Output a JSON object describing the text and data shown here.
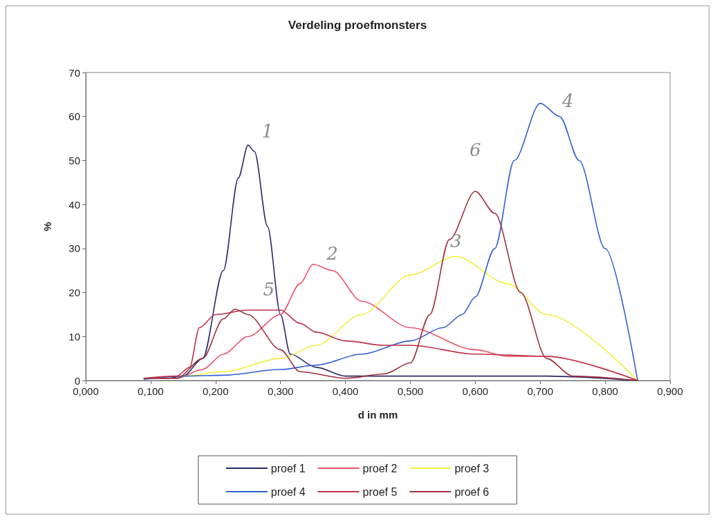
{
  "chart_data": {
    "type": "line",
    "title": "Verdeling proefmonsters",
    "xlabel": "d in mm",
    "ylabel": "%",
    "xlim": [
      0,
      0.9
    ],
    "xticks": [
      {
        "value": 0,
        "label": "0,000"
      },
      {
        "value": 0.1,
        "label": "0,100"
      },
      {
        "value": 0.2,
        "label": "0,200"
      },
      {
        "value": 0.3,
        "label": "0,300"
      },
      {
        "value": 0.4,
        "label": "0,400"
      },
      {
        "value": 0.5,
        "label": "0,500"
      },
      {
        "value": 0.6,
        "label": "0,600"
      },
      {
        "value": 0.7,
        "label": "0,700"
      },
      {
        "value": 0.8,
        "label": "0,800"
      },
      {
        "value": 0.9,
        "label": "0,900"
      }
    ],
    "ylim": [
      0,
      70
    ],
    "yticks": [
      0,
      10,
      20,
      30,
      40,
      50,
      60,
      70
    ],
    "legend": "bottom",
    "marker": "none",
    "line_style": "solid",
    "series": [
      {
        "name": "proef 1",
        "color": "#2a2a6a",
        "x": [
          0.09,
          0.125,
          0.15,
          0.18,
          0.212,
          0.235,
          0.25,
          0.26,
          0.28,
          0.3,
          0.315,
          0.355,
          0.4,
          0.5,
          0.6,
          0.71,
          0.85
        ],
        "values": [
          0.5,
          0.5,
          1,
          5,
          25,
          46,
          53.5,
          52,
          35,
          15,
          6,
          3,
          1,
          1,
          1,
          1,
          0
        ]
      },
      {
        "name": "proef 2",
        "color": "#f0506a",
        "x": [
          0.09,
          0.14,
          0.18,
          0.212,
          0.25,
          0.3,
          0.33,
          0.35,
          0.38,
          0.425,
          0.5,
          0.6,
          0.65,
          0.71,
          0.85
        ],
        "values": [
          0.5,
          0.5,
          2.5,
          6,
          10,
          15,
          22,
          26.4,
          25,
          18,
          12,
          7,
          5.5,
          5.5,
          0
        ]
      },
      {
        "name": "proef 3",
        "color": "#f0f040",
        "x": [
          0.09,
          0.15,
          0.212,
          0.3,
          0.355,
          0.425,
          0.5,
          0.57,
          0.65,
          0.71,
          0.85
        ],
        "values": [
          0.5,
          1,
          2,
          5,
          8,
          15,
          24,
          28.2,
          22,
          15,
          0
        ]
      },
      {
        "name": "proef 4",
        "color": "#3060d0",
        "x": [
          0.09,
          0.15,
          0.212,
          0.3,
          0.355,
          0.425,
          0.5,
          0.55,
          0.58,
          0.6,
          0.63,
          0.66,
          0.7,
          0.73,
          0.76,
          0.8,
          0.85
        ],
        "values": [
          0.3,
          1,
          1.2,
          2.5,
          3.5,
          6,
          9,
          12,
          15,
          19,
          30,
          50,
          63,
          60,
          50,
          30,
          0
        ]
      },
      {
        "name": "proef 5",
        "color": "#c03048",
        "x": [
          0.09,
          0.14,
          0.16,
          0.175,
          0.2,
          0.25,
          0.3,
          0.33,
          0.355,
          0.4,
          0.46,
          0.5,
          0.6,
          0.71,
          0.85
        ],
        "values": [
          0.5,
          1,
          3,
          12,
          15,
          16,
          16,
          13,
          11,
          9,
          8,
          8,
          6,
          5.5,
          0
        ]
      },
      {
        "name": "proef 6",
        "color": "#a03040",
        "x": [
          0.09,
          0.14,
          0.18,
          0.212,
          0.23,
          0.25,
          0.3,
          0.33,
          0.4,
          0.46,
          0.5,
          0.53,
          0.56,
          0.6,
          0.63,
          0.67,
          0.71,
          0.75,
          0.85
        ],
        "values": [
          0.5,
          0.5,
          5,
          14,
          16.2,
          15,
          7,
          2,
          0.5,
          1.5,
          4,
          15,
          32,
          43,
          38,
          20,
          5,
          1,
          0
        ]
      }
    ],
    "annotations": [
      "1",
      "2",
      "3",
      "4",
      "5",
      "6"
    ]
  }
}
